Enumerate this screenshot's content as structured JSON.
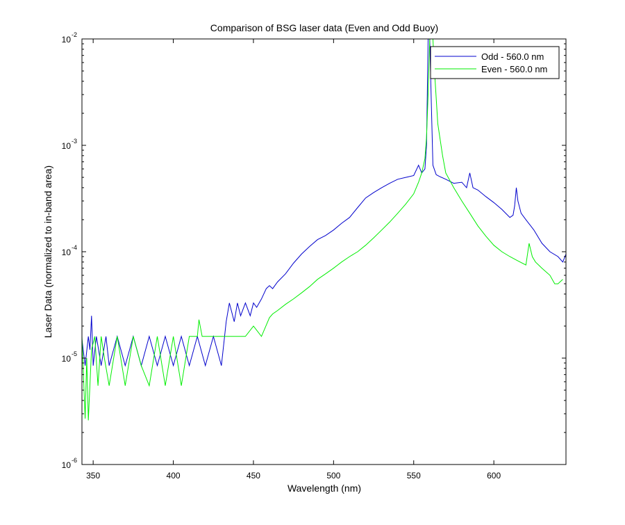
{
  "colors": {
    "odd": "#0000cc",
    "even": "#00ee00",
    "axis": "#000000",
    "background": "#ffffff"
  },
  "chart_data": {
    "type": "line",
    "title": "Comparison of BSG laser data (Even and Odd Buoy)",
    "xlabel": "Wavelength (nm)",
    "ylabel": "Laser Data (normalized to in-band area)",
    "xlim": [
      343,
      645
    ],
    "ylim": [
      1e-06,
      0.01
    ],
    "yscale": "log",
    "grid": false,
    "legend_position": "top-right",
    "x_ticks": [
      350,
      400,
      450,
      500,
      550,
      600
    ],
    "x_tick_labels": [
      "350",
      "400",
      "450",
      "500",
      "550",
      "600"
    ],
    "y_ticks": [
      {
        "value": 1e-06,
        "base": "10",
        "exponent": "-6"
      },
      {
        "value": 1e-05,
        "base": "10",
        "exponent": "-5"
      },
      {
        "value": 0.0001,
        "base": "10",
        "exponent": "-4"
      },
      {
        "value": 0.001,
        "base": "10",
        "exponent": "-3"
      },
      {
        "value": 0.01,
        "base": "10",
        "exponent": "-2"
      }
    ],
    "series": [
      {
        "name": "Odd - 560.0 nm",
        "color": "#0000cc",
        "x": [
          343,
          345,
          347,
          348,
          349,
          350,
          352,
          355,
          358,
          360,
          365,
          370,
          375,
          380,
          385,
          390,
          395,
          400,
          405,
          410,
          415,
          420,
          425,
          430,
          432,
          433,
          435,
          438,
          440,
          442,
          445,
          448,
          450,
          452,
          455,
          458,
          460,
          462,
          465,
          470,
          475,
          480,
          485,
          490,
          495,
          500,
          505,
          510,
          515,
          520,
          525,
          530,
          535,
          540,
          545,
          550,
          553,
          555,
          557,
          558,
          559,
          560,
          561,
          562,
          564,
          566,
          570,
          575,
          580,
          583,
          585,
          587,
          590,
          595,
          600,
          605,
          610,
          612,
          613,
          614,
          615,
          617,
          620,
          625,
          630,
          635,
          640,
          643,
          645
        ],
        "y": [
          1.5e-05,
          8.5e-06,
          1.6e-05,
          1.2e-05,
          2.5e-05,
          8.5e-06,
          1.6e-05,
          8.5e-06,
          1.6e-05,
          8.5e-06,
          1.6e-05,
          8.5e-06,
          1.6e-05,
          8.5e-06,
          1.6e-05,
          8.5e-06,
          1.6e-05,
          8.5e-06,
          1.6e-05,
          8.5e-06,
          1.6e-05,
          8.5e-06,
          1.6e-05,
          8.5e-06,
          1.6e-05,
          2.2e-05,
          3.3e-05,
          2.2e-05,
          3.3e-05,
          2.5e-05,
          3.3e-05,
          2.5e-05,
          3.3e-05,
          3e-05,
          3.6e-05,
          4.5e-05,
          4.8e-05,
          4.5e-05,
          5.2e-05,
          6.2e-05,
          7.8e-05,
          9.5e-05,
          0.000112,
          0.00013,
          0.000142,
          0.00016,
          0.000185,
          0.00021,
          0.00026,
          0.00032,
          0.00036,
          0.0004,
          0.00044,
          0.00048,
          0.0005,
          0.00052,
          0.00065,
          0.00055,
          0.0006,
          0.001,
          0.01,
          0.01,
          0.0025,
          0.00065,
          0.00053,
          0.00051,
          0.00048,
          0.00044,
          0.00045,
          0.0004,
          0.00055,
          0.0004,
          0.00038,
          0.00033,
          0.00029,
          0.00025,
          0.00021,
          0.00022,
          0.00027,
          0.0004,
          0.0003,
          0.00023,
          0.0002,
          0.00016,
          0.00012,
          0.0001,
          9e-05,
          8e-05,
          9.5e-05
        ]
      },
      {
        "name": "Even - 560.0 nm",
        "color": "#00ee00",
        "x": [
          343,
          345,
          346,
          347,
          349,
          351,
          353,
          355,
          357,
          360,
          365,
          370,
          375,
          380,
          385,
          390,
          395,
          400,
          405,
          410,
          415,
          416,
          418,
          420,
          425,
          430,
          435,
          440,
          445,
          450,
          455,
          460,
          462,
          465,
          470,
          475,
          480,
          485,
          490,
          495,
          500,
          505,
          510,
          515,
          520,
          525,
          530,
          535,
          540,
          545,
          550,
          553,
          555,
          557,
          558,
          559,
          560,
          561,
          562,
          563,
          565,
          568,
          570,
          575,
          580,
          585,
          590,
          595,
          600,
          605,
          610,
          615,
          620,
          622,
          624,
          626,
          630,
          635,
          638,
          640,
          643
        ],
        "y": [
          1.6e-05,
          2.7e-06,
          1e-05,
          2.6e-06,
          1.2e-05,
          1.6e-05,
          5.5e-06,
          1.6e-05,
          1e-05,
          5.5e-06,
          1.6e-05,
          5.5e-06,
          1.6e-05,
          8.5e-06,
          5.5e-06,
          1.6e-05,
          5.5e-06,
          1.6e-05,
          5.5e-06,
          1.6e-05,
          1.6e-05,
          2.3e-05,
          1.6e-05,
          1.6e-05,
          1.6e-05,
          1.6e-05,
          1.6e-05,
          1.6e-05,
          1.6e-05,
          2e-05,
          1.6e-05,
          2.4e-05,
          2.6e-05,
          2.8e-05,
          3.2e-05,
          3.6e-05,
          4.1e-05,
          4.7e-05,
          5.5e-05,
          6.2e-05,
          7e-05,
          8e-05,
          9e-05,
          0.0001,
          0.000115,
          0.000135,
          0.00016,
          0.00019,
          0.00023,
          0.00028,
          0.00035,
          0.00045,
          0.00055,
          0.00075,
          0.0012,
          0.003,
          0.01,
          0.01,
          0.01,
          0.005,
          0.0016,
          0.0008,
          0.00055,
          0.0004,
          0.0003,
          0.00023,
          0.000175,
          0.00014,
          0.000115,
          0.0001,
          9e-05,
          8.2e-05,
          7.5e-05,
          0.00012,
          9e-05,
          8e-05,
          7e-05,
          6e-05,
          5e-05,
          5e-05,
          5.5e-05
        ]
      }
    ]
  }
}
